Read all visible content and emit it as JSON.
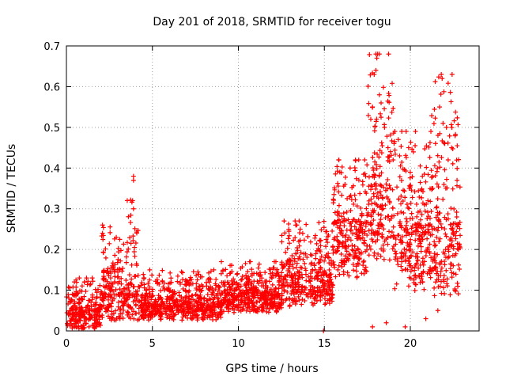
{
  "chart_data": {
    "type": "scatter",
    "title": "Day 201 of 2018, SRMTID for receiver togu",
    "xlabel": "GPS time / hours",
    "ylabel": "SRMTID / TECUs",
    "xlim": [
      0,
      24
    ],
    "ylim": [
      0,
      0.7
    ],
    "x_ticks": [
      0,
      5,
      10,
      15,
      20
    ],
    "x_tick_labels": [
      "0",
      "5",
      "10",
      "15",
      "20"
    ],
    "y_ticks": [
      0,
      0.1,
      0.2,
      0.3,
      0.4,
      0.5,
      0.6,
      0.7
    ],
    "y_tick_labels": [
      "0",
      "0.1",
      "0.2",
      "0.3",
      "0.4",
      "0.5",
      "0.6",
      "0.7"
    ],
    "grid": true,
    "marker": "plus",
    "color": "#ff0000",
    "envelope": {
      "description": "approximate scatter density per hourly segment (typical value and spread)",
      "segments": [
        {
          "x0": 0.0,
          "x1": 2.0,
          "typ": 0.03,
          "spread": 0.05,
          "max": 0.13
        },
        {
          "x0": 2.0,
          "x1": 3.5,
          "typ": 0.06,
          "spread": 0.07,
          "max": 0.26
        },
        {
          "x0": 3.5,
          "x1": 4.2,
          "typ": 0.07,
          "spread": 0.09,
          "max": 0.38
        },
        {
          "x0": 4.2,
          "x1": 9.0,
          "typ": 0.045,
          "spread": 0.04,
          "max": 0.15
        },
        {
          "x0": 9.0,
          "x1": 12.5,
          "typ": 0.07,
          "spread": 0.05,
          "max": 0.17
        },
        {
          "x0": 12.5,
          "x1": 15.5,
          "typ": 0.1,
          "spread": 0.08,
          "max": 0.27
        },
        {
          "x0": 15.5,
          "x1": 17.5,
          "typ": 0.2,
          "spread": 0.15,
          "max": 0.42
        },
        {
          "x0": 17.5,
          "x1": 19.0,
          "typ": 0.27,
          "spread": 0.2,
          "max": 0.68
        },
        {
          "x0": 19.0,
          "x1": 21.2,
          "typ": 0.18,
          "spread": 0.17,
          "max": 0.49
        },
        {
          "x0": 21.2,
          "x1": 22.9,
          "typ": 0.17,
          "spread": 0.17,
          "max": 0.63
        }
      ]
    },
    "highlight_points": [
      {
        "x": 3.9,
        "y": 0.38
      },
      {
        "x": 3.9,
        "y": 0.37
      },
      {
        "x": 3.85,
        "y": 0.32
      },
      {
        "x": 3.9,
        "y": 0.3
      },
      {
        "x": 2.1,
        "y": 0.26
      },
      {
        "x": 2.1,
        "y": 0.24
      },
      {
        "x": 2.9,
        "y": 0.23
      },
      {
        "x": 13.3,
        "y": 0.27
      },
      {
        "x": 13.4,
        "y": 0.26
      },
      {
        "x": 13.6,
        "y": 0.25
      },
      {
        "x": 10.7,
        "y": 0.17
      },
      {
        "x": 14.95,
        "y": 0.0
      },
      {
        "x": 18.1,
        "y": 0.68
      },
      {
        "x": 18.2,
        "y": 0.68
      },
      {
        "x": 18.05,
        "y": 0.67
      },
      {
        "x": 17.9,
        "y": 0.63
      },
      {
        "x": 18.0,
        "y": 0.64
      },
      {
        "x": 17.8,
        "y": 0.55
      },
      {
        "x": 18.2,
        "y": 0.58
      },
      {
        "x": 18.3,
        "y": 0.56
      },
      {
        "x": 17.7,
        "y": 0.52
      },
      {
        "x": 18.5,
        "y": 0.5
      },
      {
        "x": 19.3,
        "y": 0.47
      },
      {
        "x": 19.5,
        "y": 0.49
      },
      {
        "x": 20.3,
        "y": 0.49
      },
      {
        "x": 19.9,
        "y": 0.45
      },
      {
        "x": 21.8,
        "y": 0.63
      },
      {
        "x": 21.85,
        "y": 0.62
      },
      {
        "x": 21.7,
        "y": 0.55
      },
      {
        "x": 21.9,
        "y": 0.51
      },
      {
        "x": 22.1,
        "y": 0.5
      },
      {
        "x": 22.0,
        "y": 0.46
      },
      {
        "x": 22.4,
        "y": 0.45
      },
      {
        "x": 22.2,
        "y": 0.42
      },
      {
        "x": 17.0,
        "y": 0.42
      },
      {
        "x": 16.5,
        "y": 0.4
      },
      {
        "x": 15.9,
        "y": 0.39
      },
      {
        "x": 16.2,
        "y": 0.36
      },
      {
        "x": 17.4,
        "y": 0.38
      },
      {
        "x": 18.7,
        "y": 0.45
      },
      {
        "x": 19.0,
        "y": 0.42
      },
      {
        "x": 20.7,
        "y": 0.38
      },
      {
        "x": 21.3,
        "y": 0.35
      },
      {
        "x": 22.7,
        "y": 0.28
      },
      {
        "x": 22.8,
        "y": 0.2
      },
      {
        "x": 22.6,
        "y": 0.1
      },
      {
        "x": 17.8,
        "y": 0.01
      },
      {
        "x": 18.6,
        "y": 0.02
      },
      {
        "x": 19.7,
        "y": 0.01
      },
      {
        "x": 20.9,
        "y": 0.03
      },
      {
        "x": 21.6,
        "y": 0.05
      }
    ]
  }
}
